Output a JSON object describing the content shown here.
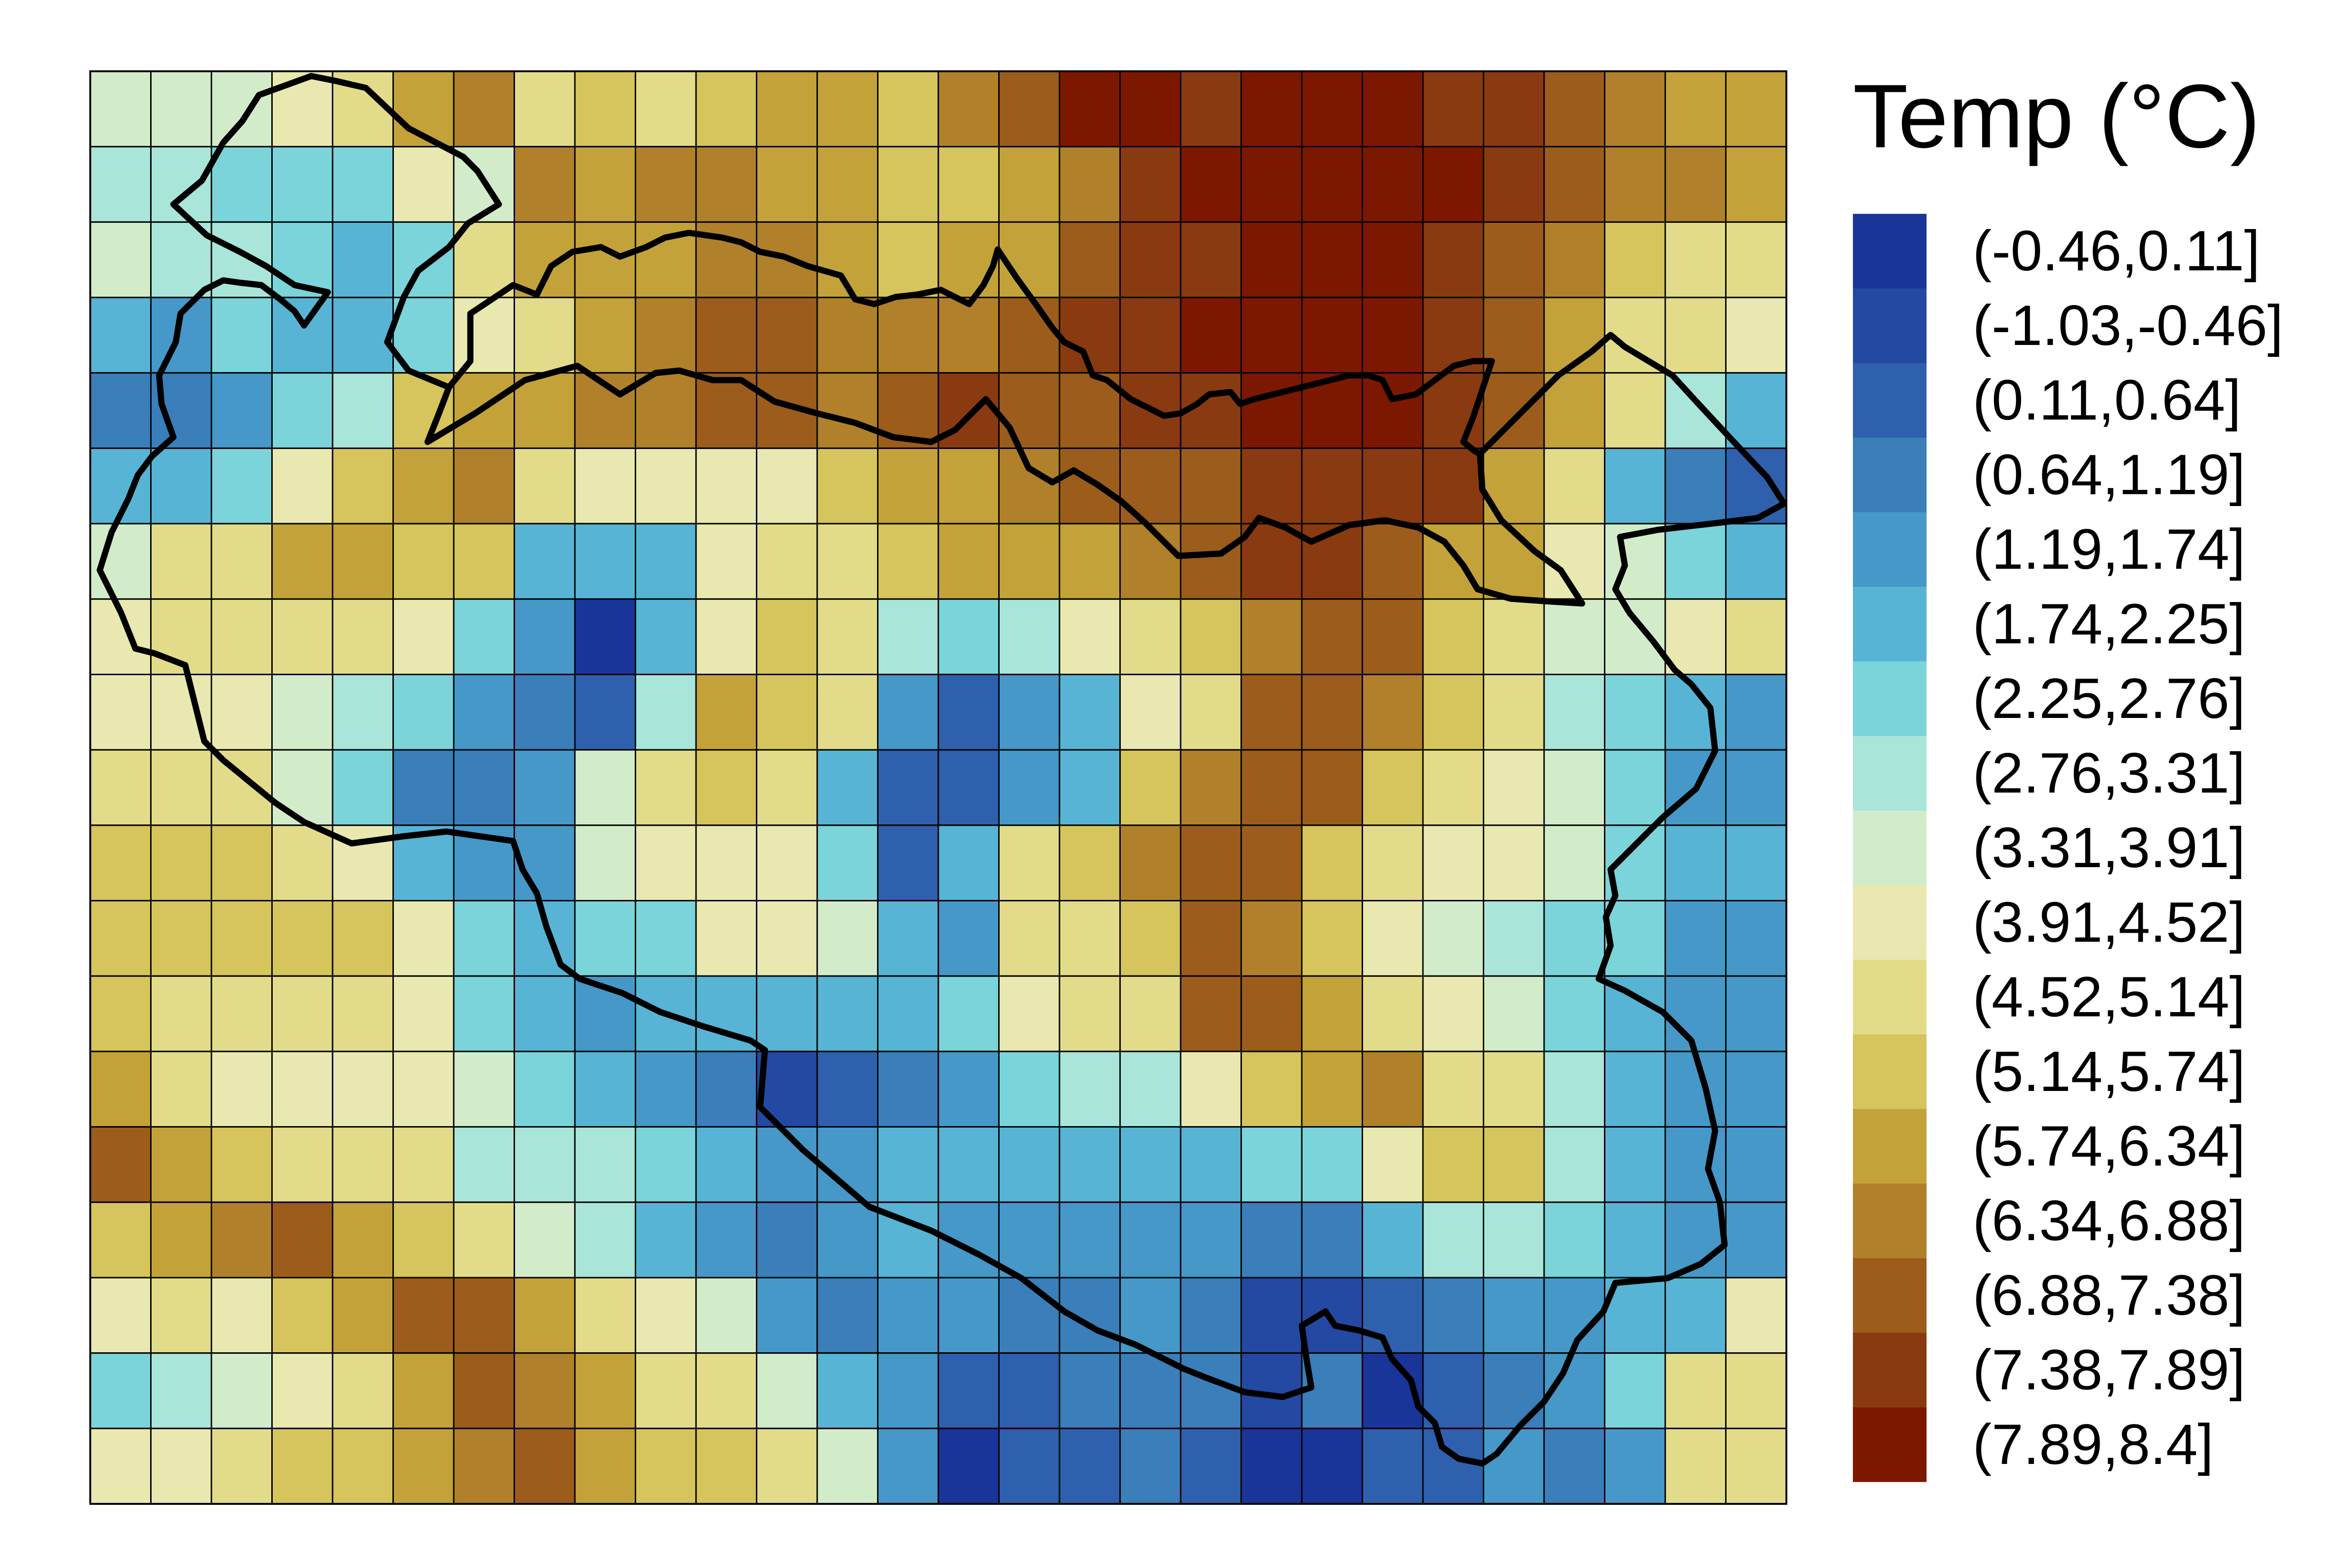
{
  "map": {
    "rows": 19,
    "cols": 28,
    "grid_classes": [
      [
        8,
        8,
        8,
        9,
        10,
        12,
        13,
        10,
        11,
        10,
        11,
        12,
        12,
        11,
        13,
        14,
        16,
        16,
        15,
        16,
        16,
        16,
        15,
        15,
        14,
        13,
        12,
        12
      ],
      [
        7,
        7,
        6,
        6,
        6,
        9,
        8,
        13,
        12,
        13,
        13,
        12,
        12,
        11,
        11,
        12,
        13,
        15,
        16,
        16,
        16,
        16,
        16,
        15,
        14,
        13,
        13,
        12
      ],
      [
        8,
        7,
        7,
        6,
        5,
        6,
        10,
        12,
        12,
        12,
        13,
        13,
        12,
        11,
        12,
        12,
        14,
        15,
        15,
        16,
        16,
        16,
        15,
        14,
        13,
        11,
        10,
        10
      ],
      [
        5,
        4,
        6,
        5,
        5,
        6,
        9,
        10,
        12,
        13,
        14,
        14,
        13,
        13,
        13,
        14,
        15,
        15,
        16,
        16,
        16,
        16,
        15,
        14,
        12,
        10,
        10,
        9
      ],
      [
        3,
        3,
        4,
        6,
        7,
        11,
        12,
        12,
        13,
        13,
        14,
        14,
        13,
        14,
        15,
        14,
        14,
        15,
        15,
        16,
        16,
        16,
        15,
        14,
        12,
        10,
        7,
        5
      ],
      [
        5,
        5,
        6,
        9,
        11,
        12,
        13,
        10,
        9,
        9,
        9,
        9,
        11,
        12,
        12,
        13,
        14,
        14,
        14,
        15,
        15,
        15,
        15,
        12,
        10,
        5,
        3,
        2
      ],
      [
        8,
        10,
        10,
        12,
        12,
        11,
        11,
        5,
        5,
        5,
        9,
        10,
        10,
        11,
        12,
        12,
        12,
        13,
        14,
        15,
        15,
        14,
        12,
        12,
        9,
        8,
        6,
        5
      ],
      [
        9,
        10,
        10,
        10,
        10,
        9,
        6,
        4,
        0,
        5,
        9,
        11,
        10,
        7,
        6,
        7,
        9,
        10,
        11,
        13,
        14,
        14,
        11,
        10,
        8,
        8,
        9,
        10
      ],
      [
        9,
        9,
        9,
        8,
        7,
        6,
        4,
        3,
        2,
        7,
        12,
        11,
        10,
        4,
        2,
        4,
        5,
        9,
        10,
        14,
        14,
        13,
        11,
        10,
        7,
        6,
        5,
        4
      ],
      [
        10,
        10,
        10,
        8,
        6,
        3,
        3,
        4,
        8,
        10,
        11,
        10,
        5,
        2,
        2,
        4,
        5,
        11,
        13,
        14,
        14,
        11,
        10,
        9,
        8,
        6,
        4,
        4
      ],
      [
        11,
        11,
        11,
        10,
        9,
        5,
        4,
        4,
        8,
        9,
        9,
        9,
        6,
        2,
        5,
        10,
        11,
        13,
        14,
        14,
        11,
        10,
        9,
        9,
        8,
        6,
        5,
        5
      ],
      [
        11,
        11,
        11,
        11,
        11,
        9,
        6,
        5,
        6,
        6,
        9,
        9,
        8,
        5,
        4,
        10,
        10,
        11,
        14,
        13,
        11,
        9,
        8,
        7,
        6,
        6,
        4,
        4
      ],
      [
        11,
        10,
        10,
        10,
        10,
        9,
        6,
        5,
        4,
        5,
        5,
        5,
        5,
        5,
        6,
        9,
        10,
        10,
        14,
        14,
        12,
        10,
        9,
        8,
        6,
        5,
        4,
        4
      ],
      [
        12,
        10,
        9,
        9,
        9,
        9,
        8,
        6,
        5,
        4,
        3,
        1,
        2,
        3,
        4,
        6,
        7,
        7,
        9,
        11,
        12,
        13,
        10,
        10,
        7,
        5,
        4,
        4
      ],
      [
        14,
        12,
        11,
        10,
        10,
        10,
        7,
        7,
        7,
        6,
        5,
        4,
        4,
        5,
        5,
        5,
        5,
        5,
        5,
        6,
        6,
        9,
        11,
        11,
        7,
        5,
        4,
        4
      ],
      [
        11,
        12,
        13,
        14,
        12,
        11,
        10,
        8,
        7,
        5,
        4,
        3,
        4,
        5,
        4,
        4,
        4,
        4,
        4,
        3,
        3,
        5,
        7,
        7,
        6,
        5,
        4,
        4
      ],
      [
        9,
        10,
        9,
        11,
        12,
        14,
        14,
        12,
        10,
        9,
        8,
        4,
        3,
        4,
        4,
        3,
        3,
        4,
        3,
        1,
        1,
        2,
        3,
        4,
        4,
        5,
        5,
        9
      ],
      [
        6,
        7,
        8,
        9,
        10,
        12,
        14,
        13,
        12,
        10,
        10,
        8,
        5,
        4,
        2,
        2,
        3,
        3,
        3,
        1,
        3,
        0,
        2,
        3,
        4,
        6,
        10,
        10
      ],
      [
        9,
        9,
        10,
        11,
        11,
        12,
        13,
        14,
        12,
        11,
        11,
        10,
        8,
        4,
        0,
        2,
        2,
        3,
        2,
        0,
        0,
        2,
        2,
        4,
        3,
        4,
        10,
        10
      ]
    ],
    "outline_color": "#000000",
    "grid_line_color": "#000000"
  },
  "legend": {
    "title": "Temp (°C)",
    "items": [
      {
        "label": "(-0.46,0.11]",
        "color": "#1a3599"
      },
      {
        "label": "(-1.03,-0.46]",
        "color": "#2449a3"
      },
      {
        "label": "(0.11,0.64]",
        "color": "#2e60ad"
      },
      {
        "label": "(0.64,1.19]",
        "color": "#3a7eba"
      },
      {
        "label": "(1.19,1.74]",
        "color": "#4598c8"
      },
      {
        "label": "(1.74,2.25]",
        "color": "#57b4d4"
      },
      {
        "label": "(2.25,2.76]",
        "color": "#7ad4da"
      },
      {
        "label": "(2.76,3.31]",
        "color": "#a9e5d9"
      },
      {
        "label": "(3.31,3.91]",
        "color": "#d2ecca"
      },
      {
        "label": "(3.91,4.52]",
        "color": "#e8e8b0"
      },
      {
        "label": "(4.52,5.14]",
        "color": "#e2dc8a"
      },
      {
        "label": "(5.14,5.74]",
        "color": "#d6c45c"
      },
      {
        "label": "(5.74,6.34]",
        "color": "#c4a23a"
      },
      {
        "label": "(6.34,6.88]",
        "color": "#b0812a"
      },
      {
        "label": "(6.88,7.38]",
        "color": "#9c5c1c"
      },
      {
        "label": "(7.38,7.89]",
        "color": "#8a3a10"
      },
      {
        "label": "(7.89,8.4]",
        "color": "#7d1800"
      }
    ]
  }
}
